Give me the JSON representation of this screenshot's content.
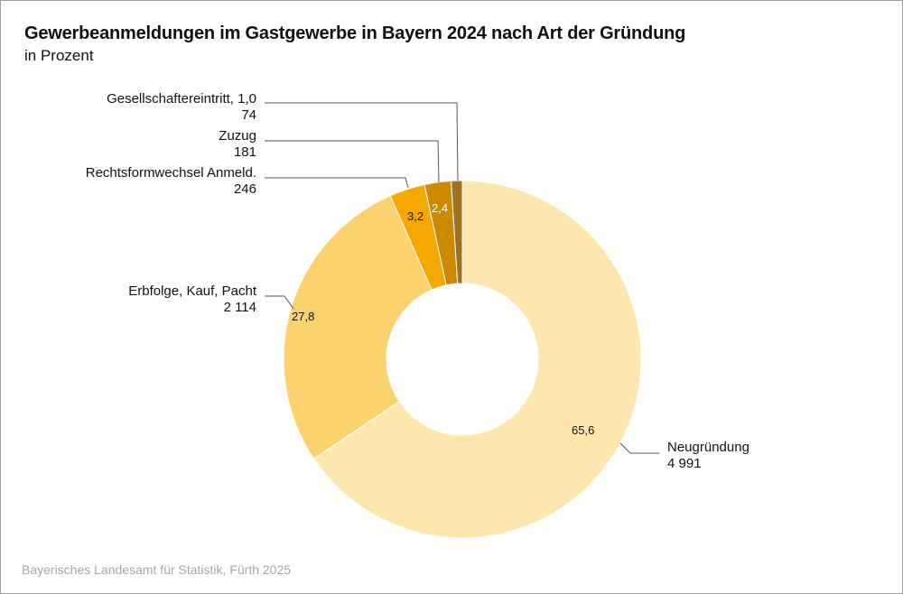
{
  "header": {
    "title": "Gewerbeanmeldungen im Gastgewerbe in Bayern 2024 nach Art der Gründung",
    "subtitle": "in Prozent"
  },
  "footer": {
    "source": "Bayerisches Landesamt für Statistik, Fürth 2025"
  },
  "chart_data": {
    "type": "pie",
    "variant": "donut",
    "title": "Gewerbeanmeldungen im Gastgewerbe in Bayern 2024 nach Art der Gründung",
    "subtitle": "in Prozent",
    "unit": "Prozent",
    "categories": [
      "Neugründung",
      "Erbfolge, Kauf, Pacht",
      "Rechtsformwechsel Anmeld.",
      "Zuzug",
      "Gesellschaftereintritt"
    ],
    "values": [
      65.6,
      27.8,
      3.2,
      2.4,
      1.0
    ],
    "counts": [
      4991,
      2114,
      246,
      181,
      74
    ],
    "slices": [
      {
        "name": "Neugründung",
        "percent": 65.6,
        "percent_label": "65,6",
        "count_label": "4 991",
        "color": "#fde7ae"
      },
      {
        "name": "Erbfolge, Kauf, Pacht",
        "percent": 27.8,
        "percent_label": "27,8",
        "count_label": "2 114",
        "color": "#fcd26f"
      },
      {
        "name": "Rechtsformwechsel Anmeld.",
        "percent": 3.2,
        "percent_label": "3,2",
        "count_label": "246",
        "color": "#f5a800"
      },
      {
        "name": "Zuzug",
        "percent": 2.4,
        "percent_label": "2,4",
        "count_label": "181",
        "color": "#cc8a00"
      },
      {
        "name": "Gesellschaftereintritt",
        "percent": 1.0,
        "percent_label": "1,0",
        "count_label": "74",
        "color": "#9c7220"
      }
    ],
    "labels": {
      "gesellschafter_name": "Gesellschaftereintritt, 1,0",
      "gesellschafter_count": "74",
      "zuzug_name": "Zuzug",
      "zuzug_count": "181",
      "rechtsform_name": "Rechtsformwechsel Anmeld.",
      "rechtsform_count": "246",
      "erbfolge_name": "Erbfolge, Kauf, Pacht",
      "erbfolge_count": "2 114",
      "neu_name": "Neugründung",
      "neu_count": "4 991",
      "val_neu": "65,6",
      "val_erbfolge": "27,8",
      "val_rechtsform": "3,2",
      "val_zuzug": "2,4"
    },
    "start_angle": "12 o'clock",
    "direction": "clockwise",
    "legend": "none (direct labels)"
  }
}
